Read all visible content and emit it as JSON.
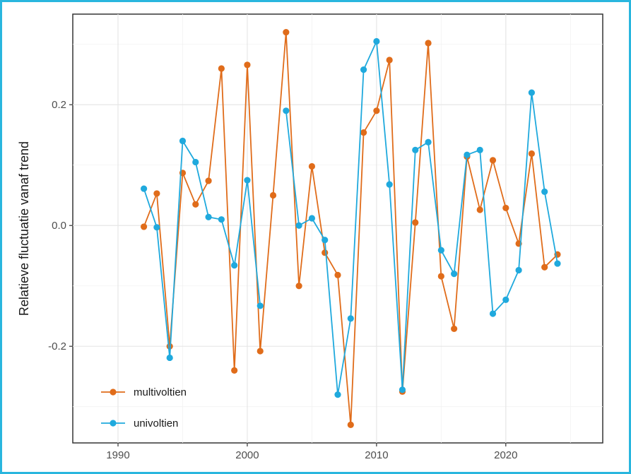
{
  "chart_data": {
    "type": "line",
    "title": "",
    "xlabel": "",
    "ylabel": "Relatieve fluctuatie vanaf trend",
    "xlim": [
      1986.5,
      2027.5
    ],
    "ylim": [
      -0.36,
      0.35
    ],
    "x_ticks": [
      1990,
      2000,
      2010,
      2020
    ],
    "x_tick_labels": [
      "1990",
      "2000",
      "2010",
      "2020"
    ],
    "y_ticks": [
      -0.2,
      0.0,
      0.2
    ],
    "y_tick_labels": [
      "-0.2",
      "0.0",
      "0.2"
    ],
    "grid": true,
    "legend_position": "bottom-left",
    "x": [
      1992,
      1993,
      1994,
      1995,
      1996,
      1997,
      1998,
      1999,
      2000,
      2001,
      2002,
      2003,
      2004,
      2005,
      2006,
      2007,
      2008,
      2009,
      2010,
      2011,
      2012,
      2013,
      2014,
      2015,
      2016,
      2017,
      2018,
      2019,
      2020,
      2021,
      2022,
      2023,
      2024
    ],
    "series": [
      {
        "name": "multivoltien",
        "color": "#e06c1a",
        "values": [
          -0.002,
          0.053,
          -0.2,
          0.087,
          0.035,
          0.074,
          0.26,
          -0.24,
          0.266,
          -0.208,
          0.05,
          0.32,
          -0.1,
          0.098,
          -0.045,
          -0.082,
          -0.33,
          0.154,
          0.19,
          0.274,
          -0.275,
          0.005,
          0.302,
          -0.084,
          -0.171,
          0.114,
          0.026,
          0.108,
          0.029,
          -0.03,
          0.119,
          -0.069,
          -0.048
        ]
      },
      {
        "name": "univoltien",
        "color": "#1fa9dd",
        "values": [
          0.061,
          -0.003,
          -0.219,
          0.14,
          0.105,
          0.014,
          0.01,
          -0.066,
          0.075,
          -0.133,
          null,
          0.19,
          0.0,
          0.012,
          -0.024,
          -0.28,
          -0.154,
          0.258,
          0.305,
          0.068,
          -0.272,
          0.125,
          0.138,
          -0.041,
          -0.08,
          0.117,
          0.125,
          -0.146,
          -0.123,
          -0.074,
          0.22,
          0.056,
          -0.063
        ]
      }
    ]
  }
}
